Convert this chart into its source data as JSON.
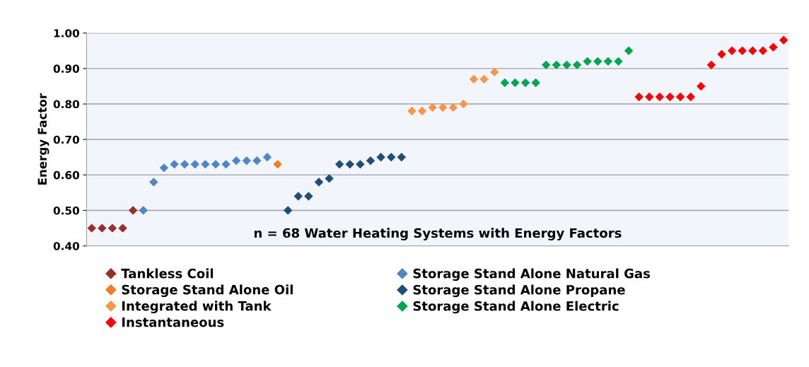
{
  "chart_data": {
    "type": "scatter",
    "ylabel": "Energy Factor",
    "categories": [
      null,
      null,
      null,
      null,
      null,
      null,
      null,
      null,
      null,
      null,
      null,
      null,
      null,
      null,
      null,
      null,
      null,
      null,
      null,
      null,
      null,
      null,
      null,
      null,
      null,
      null,
      null,
      null,
      null,
      null,
      null,
      null,
      null,
      null,
      null,
      null,
      null,
      null,
      null,
      null,
      null,
      null,
      null,
      null,
      null,
      null,
      null,
      null,
      null,
      null,
      null,
      null,
      null,
      null,
      null,
      null,
      null,
      null,
      null,
      null,
      null,
      null,
      null,
      null,
      null,
      null,
      null,
      null
    ],
    "ylim": [
      0.4,
      1.0
    ],
    "yticks": [
      {
        "value": 0.4,
        "label": "0.40"
      },
      {
        "value": 0.5,
        "label": "0.50"
      },
      {
        "value": 0.6,
        "label": "0.60"
      },
      {
        "value": 0.7,
        "label": "0.70"
      },
      {
        "value": 0.8,
        "label": "0.80"
      },
      {
        "value": 0.9,
        "label": "0.90"
      },
      {
        "value": 1.0,
        "label": "1.00"
      }
    ],
    "grid": "y",
    "legend": "bottom",
    "marker": "diamond",
    "annotations": [
      "n = 68 Water Heating Systems with Energy Factors"
    ],
    "series": [
      {
        "name": "Tankless Coil",
        "color": "#9b2d2a",
        "values": [
          0.45,
          0.45,
          0.45,
          0.45,
          0.5,
          null,
          null,
          null,
          null,
          null,
          null,
          null,
          null,
          null,
          null,
          null,
          null,
          null,
          null,
          null,
          null,
          null,
          null,
          null,
          null,
          null,
          null,
          null,
          null,
          null,
          null,
          null,
          null,
          null,
          null,
          null,
          null,
          null,
          null,
          null,
          null,
          null,
          null,
          null,
          null,
          null,
          null,
          null,
          null,
          null,
          null,
          null,
          null,
          null,
          null,
          null,
          null,
          null,
          null,
          null,
          null,
          null,
          null,
          null,
          null,
          null,
          null,
          null
        ]
      },
      {
        "name": "Storage Stand Alone Natural Gas",
        "color": "#4f86c6",
        "values": [
          null,
          null,
          null,
          null,
          null,
          0.5,
          0.58,
          0.62,
          0.63,
          0.63,
          0.63,
          0.63,
          0.63,
          0.63,
          0.64,
          0.64,
          0.64,
          0.65,
          null,
          null,
          null,
          null,
          null,
          null,
          null,
          null,
          null,
          null,
          null,
          null,
          null,
          null,
          null,
          null,
          null,
          null,
          null,
          null,
          null,
          null,
          null,
          null,
          null,
          null,
          null,
          null,
          null,
          null,
          null,
          null,
          null,
          null,
          null,
          null,
          null,
          null,
          null,
          null,
          null,
          null,
          null,
          null,
          null,
          null,
          null,
          null,
          null,
          null
        ]
      },
      {
        "name": "Storage Stand Alone Oil",
        "color": "#f47b20",
        "values": [
          null,
          null,
          null,
          null,
          null,
          null,
          null,
          null,
          null,
          null,
          null,
          null,
          null,
          null,
          null,
          null,
          null,
          null,
          0.63,
          null,
          null,
          null,
          null,
          null,
          null,
          null,
          null,
          null,
          null,
          null,
          null,
          null,
          null,
          null,
          null,
          null,
          null,
          null,
          null,
          null,
          null,
          null,
          null,
          null,
          null,
          null,
          null,
          null,
          null,
          null,
          null,
          null,
          null,
          null,
          null,
          null,
          null,
          null,
          null,
          null,
          null,
          null,
          null,
          null,
          null,
          null,
          null,
          null
        ]
      },
      {
        "name": "Storage Stand Alone Propane",
        "color": "#1f4e79",
        "values": [
          null,
          null,
          null,
          null,
          null,
          null,
          null,
          null,
          null,
          null,
          null,
          null,
          null,
          null,
          null,
          null,
          null,
          null,
          null,
          0.5,
          0.54,
          0.54,
          0.58,
          0.59,
          0.63,
          0.63,
          0.63,
          0.64,
          0.65,
          0.65,
          0.65,
          null,
          null,
          null,
          null,
          null,
          null,
          null,
          null,
          null,
          null,
          null,
          null,
          null,
          null,
          null,
          null,
          null,
          null,
          null,
          null,
          null,
          null,
          null,
          null,
          null,
          null,
          null,
          null,
          null,
          null,
          null,
          null,
          null,
          null,
          null,
          null,
          null
        ]
      },
      {
        "name": "Integrated with Tank",
        "color": "#f79646",
        "values": [
          null,
          null,
          null,
          null,
          null,
          null,
          null,
          null,
          null,
          null,
          null,
          null,
          null,
          null,
          null,
          null,
          null,
          null,
          null,
          null,
          null,
          null,
          null,
          null,
          null,
          null,
          null,
          null,
          null,
          null,
          null,
          0.78,
          0.78,
          0.79,
          0.79,
          0.79,
          0.8,
          0.87,
          0.87,
          0.89,
          null,
          null,
          null,
          null,
          null,
          null,
          null,
          null,
          null,
          null,
          null,
          null,
          null,
          null,
          null,
          null,
          null,
          null,
          null,
          null,
          null,
          null,
          null,
          null,
          null,
          null,
          null,
          null
        ]
      },
      {
        "name": "Storage Stand Alone Electric",
        "color": "#00a651",
        "values": [
          null,
          null,
          null,
          null,
          null,
          null,
          null,
          null,
          null,
          null,
          null,
          null,
          null,
          null,
          null,
          null,
          null,
          null,
          null,
          null,
          null,
          null,
          null,
          null,
          null,
          null,
          null,
          null,
          null,
          null,
          null,
          null,
          null,
          null,
          null,
          null,
          null,
          null,
          null,
          null,
          0.86,
          0.86,
          0.86,
          0.86,
          0.91,
          0.91,
          0.91,
          0.91,
          0.92,
          0.92,
          0.92,
          0.92,
          0.95,
          null,
          null,
          null,
          null,
          null,
          null,
          null,
          null,
          null,
          null,
          null,
          null,
          null,
          null,
          null
        ]
      },
      {
        "name": "Instantaneous",
        "color": "#ff0000",
        "values": [
          null,
          null,
          null,
          null,
          null,
          null,
          null,
          null,
          null,
          null,
          null,
          null,
          null,
          null,
          null,
          null,
          null,
          null,
          null,
          null,
          null,
          null,
          null,
          null,
          null,
          null,
          null,
          null,
          null,
          null,
          null,
          null,
          null,
          null,
          null,
          null,
          null,
          null,
          null,
          null,
          null,
          null,
          null,
          null,
          null,
          null,
          null,
          null,
          null,
          null,
          null,
          null,
          null,
          0.82,
          0.82,
          0.82,
          0.82,
          0.82,
          0.82,
          0.85,
          0.91,
          0.94,
          0.95,
          0.95,
          0.95,
          0.95,
          0.96,
          0.98
        ]
      }
    ]
  }
}
